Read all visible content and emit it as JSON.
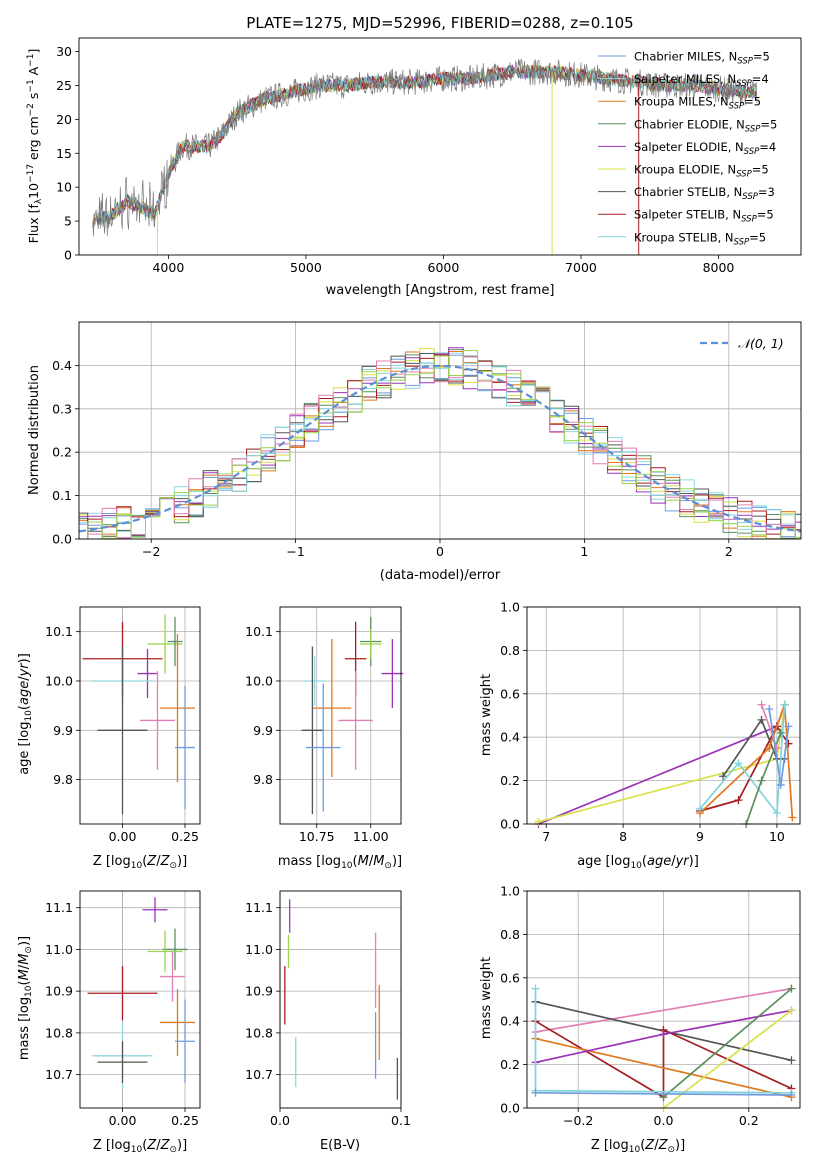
{
  "colors": {
    "chabrier_miles": "#6f9be0",
    "salpeter_miles": "#8fd5e2",
    "kroupa_miles": "#e0781f",
    "chabrier_elodie": "#5d8f60",
    "salpeter_elodie": "#9a33b8",
    "kroupa_elodie": "#d9e04a",
    "chabrier_stelib": "#555555",
    "salpeter_stelib": "#a71c22",
    "kroupa_stelib": "#7fd3dc",
    "pink": "#e47fb5",
    "lime": "#9bd44a",
    "gaussian": "#5a8fd9",
    "grid": "#b0b0b0"
  },
  "chart_data": [
    {
      "id": "spectrum",
      "type": "line",
      "title": "PLATE=1275, MJD=52996, FIBERID=0288, z=0.105",
      "xlabel": "wavelength [Angstrom, rest frame]",
      "ylabel": "Flux [f_λ 10^-17 erg cm^-2 s^-1 A^-1]",
      "xlim": [
        3350,
        8600
      ],
      "ylim": [
        0,
        32
      ],
      "xticks": [
        4000,
        5000,
        6000,
        7000,
        8000
      ],
      "yticks": [
        0,
        5,
        10,
        15,
        20,
        25,
        30
      ],
      "grid": false,
      "legend_position": "top-right",
      "legend": [
        {
          "base": "Chabrier MILES, N",
          "sub": "SSP",
          "tail": "=5"
        },
        {
          "base": "Salpeter MILES, N",
          "sub": "SSP",
          "tail": "=4"
        },
        {
          "base": "Kroupa MILES, N",
          "sub": "SSP",
          "tail": "=5"
        },
        {
          "base": "Chabrier ELODIE, N",
          "sub": "SSP",
          "tail": "=5"
        },
        {
          "base": "Salpeter ELODIE, N",
          "sub": "SSP",
          "tail": "=4"
        },
        {
          "base": "Kroupa ELODIE, N",
          "sub": "SSP",
          "tail": "=5"
        },
        {
          "base": "Chabrier STELIB, N",
          "sub": "SSP",
          "tail": "=3"
        },
        {
          "base": "Salpeter STELIB, N",
          "sub": "SSP",
          "tail": "=5"
        },
        {
          "base": "Kroupa STELIB, N",
          "sub": "SSP",
          "tail": "=5"
        }
      ],
      "data_trend": {
        "x": [
          3450,
          3600,
          3700,
          3800,
          3900,
          4000,
          4100,
          4200,
          4300,
          4400,
          4500,
          4700,
          4900,
          5100,
          5300,
          5500,
          5800,
          6000,
          6200,
          6500,
          6800,
          7000,
          7200,
          7400,
          7600,
          7800,
          8000,
          8200
        ],
        "y": [
          5,
          6,
          8,
          7,
          6,
          12,
          16,
          16,
          16,
          18,
          21,
          23,
          24,
          25,
          25,
          25.5,
          25.5,
          26,
          26,
          27,
          27,
          26.5,
          26,
          25.5,
          25,
          25,
          24.5,
          24
        ]
      }
    },
    {
      "id": "residuals",
      "type": "histogram",
      "xlabel": "(data-model)/error",
      "ylabel": "Normed distribution",
      "xlim": [
        -2.5,
        2.5
      ],
      "ylim": [
        0,
        0.5
      ],
      "xticks": [
        -2,
        -1,
        0,
        1,
        2
      ],
      "yticks": [
        0.0,
        0.1,
        0.2,
        0.3,
        0.4
      ],
      "grid": true,
      "legend_position": "top-right",
      "legend": [
        {
          "label": "𝒩(0, 1)"
        }
      ],
      "gaussian": {
        "mean": 0,
        "sigma": 1
      }
    },
    {
      "id": "age_vs_z",
      "type": "errorbar",
      "xlabel": "Z [log10(Z/Z⊙)]",
      "ylabel": "age [log10(age/yr)]",
      "xlim": [
        -0.17,
        0.31
      ],
      "ylim": [
        9.71,
        10.15
      ],
      "xticks": [
        0.0,
        0.25
      ],
      "yticks": [
        9.8,
        9.9,
        10.0,
        10.1
      ],
      "points": [
        {
          "x": 0.17,
          "y": 10.075,
          "xerr": 0.07,
          "yerr": 0.06,
          "color": "lime"
        },
        {
          "x": 0.21,
          "y": 10.08,
          "xerr": 0.03,
          "yerr": 0.05,
          "color": "chabrier_elodie"
        },
        {
          "x": 0.0,
          "y": 10.045,
          "xerr": 0.16,
          "yerr": 0.075,
          "color": "salpeter_stelib"
        },
        {
          "x": 0.1,
          "y": 10.015,
          "xerr": 0.04,
          "yerr": 0.05,
          "color": "salpeter_elodie"
        },
        {
          "x": 0.0,
          "y": 10.0,
          "xerr": 0.12,
          "yerr": 0.05,
          "color": "salpeter_miles"
        },
        {
          "x": 0.22,
          "y": 9.945,
          "xerr": 0.07,
          "yerr": 0.15,
          "color": "kroupa_miles"
        },
        {
          "x": 0.14,
          "y": 9.92,
          "xerr": 0.07,
          "yerr": 0.1,
          "color": "pink"
        },
        {
          "x": 0.0,
          "y": 9.9,
          "xerr": 0.1,
          "yerr": 0.17,
          "color": "chabrier_stelib"
        },
        {
          "x": 0.25,
          "y": 9.865,
          "xerr": 0.04,
          "yerr": 0.125,
          "color": "chabrier_miles"
        }
      ]
    },
    {
      "id": "age_vs_mass",
      "type": "errorbar",
      "xlabel": "mass [log10(M/M⊙)]",
      "xlim": [
        10.58,
        11.14
      ],
      "ylim": [
        9.71,
        10.15
      ],
      "xticks": [
        10.75,
        11.0
      ],
      "yticks": [
        9.8,
        9.9,
        10.0,
        10.1
      ],
      "points": [
        {
          "x": 11.0,
          "y": 10.08,
          "xerr": 0.05,
          "yerr": 0.05,
          "color": "chabrier_elodie"
        },
        {
          "x": 11.0,
          "y": 10.075,
          "xerr": 0.05,
          "yerr": 0.03,
          "color": "lime"
        },
        {
          "x": 10.93,
          "y": 10.045,
          "xerr": 0.05,
          "yerr": 0.075,
          "color": "salpeter_stelib"
        },
        {
          "x": 11.1,
          "y": 10.015,
          "xerr": 0.05,
          "yerr": 0.07,
          "color": "salpeter_elodie"
        },
        {
          "x": 10.74,
          "y": 10.0,
          "xerr": 0.05,
          "yerr": 0.05,
          "color": "salpeter_miles"
        },
        {
          "x": 10.82,
          "y": 9.945,
          "xerr": 0.09,
          "yerr": 0.14,
          "color": "kroupa_miles"
        },
        {
          "x": 10.93,
          "y": 9.92,
          "xerr": 0.08,
          "yerr": 0.1,
          "color": "pink"
        },
        {
          "x": 10.73,
          "y": 9.9,
          "xerr": 0.05,
          "yerr": 0.17,
          "color": "chabrier_stelib"
        },
        {
          "x": 10.78,
          "y": 9.865,
          "xerr": 0.08,
          "yerr": 0.13,
          "color": "chabrier_miles"
        }
      ]
    },
    {
      "id": "mass_weight_vs_age",
      "type": "line",
      "xlabel": "age [log10(age/yr)]",
      "ylabel": "mass weight",
      "xlim": [
        6.75,
        10.3
      ],
      "ylim": [
        0,
        1.0
      ],
      "xticks": [
        7,
        8,
        9,
        10
      ],
      "yticks": [
        0.0,
        0.2,
        0.4,
        0.6,
        0.8,
        1.0
      ],
      "grid": true,
      "series": [
        {
          "color": "salpeter_elodie",
          "x": [
            6.9,
            10.0,
            10.1
          ],
          "y": [
            0.0,
            0.45,
            0.55
          ]
        },
        {
          "color": "kroupa_elodie",
          "x": [
            6.9,
            10.0,
            10.1
          ],
          "y": [
            0.01,
            0.3,
            0.55
          ]
        },
        {
          "color": "salpeter_stelib",
          "x": [
            9.0,
            9.5,
            10.0,
            10.15
          ],
          "y": [
            0.06,
            0.11,
            0.45,
            0.37
          ]
        },
        {
          "color": "chabrier_stelib",
          "x": [
            9.3,
            9.8,
            10.0,
            10.1
          ],
          "y": [
            0.22,
            0.48,
            0.3,
            0.3
          ]
        },
        {
          "color": "kroupa_miles",
          "x": [
            9.0,
            9.9,
            10.1,
            10.2
          ],
          "y": [
            0.05,
            0.35,
            0.55,
            0.03
          ]
        },
        {
          "color": "kroupa_stelib",
          "x": [
            9.0,
            9.5,
            10.0,
            10.1
          ],
          "y": [
            0.07,
            0.28,
            0.05,
            0.55
          ]
        },
        {
          "color": "chabrier_elodie",
          "x": [
            9.6,
            9.8,
            10.05
          ],
          "y": [
            0.0,
            0.2,
            0.42
          ]
        },
        {
          "color": "pink",
          "x": [
            9.8,
            10.0
          ],
          "y": [
            0.55,
            0.35
          ]
        },
        {
          "color": "chabrier_miles",
          "x": [
            9.9,
            10.05,
            10.15
          ],
          "y": [
            0.53,
            0.18,
            0.45
          ]
        }
      ]
    },
    {
      "id": "mass_vs_z",
      "type": "errorbar",
      "xlabel": "Z [log10(Z/Z⊙)]",
      "ylabel": "mass [log10(M/M⊙)]",
      "xlim": [
        -0.17,
        0.31
      ],
      "ylim": [
        10.62,
        11.14
      ],
      "xticks": [
        0.0,
        0.25
      ],
      "yticks": [
        10.7,
        10.8,
        10.9,
        11.0,
        11.1
      ],
      "points": [
        {
          "x": 0.13,
          "y": 11.095,
          "xerr": 0.05,
          "yerr": 0.03,
          "color": "salpeter_elodie"
        },
        {
          "x": 0.21,
          "y": 11.0,
          "xerr": 0.05,
          "yerr": 0.05,
          "color": "chabrier_elodie"
        },
        {
          "x": 0.17,
          "y": 10.995,
          "xerr": 0.07,
          "yerr": 0.05,
          "color": "lime"
        },
        {
          "x": 0.2,
          "y": 10.935,
          "xerr": 0.05,
          "yerr": 0.06,
          "color": "pink"
        },
        {
          "x": 0.0,
          "y": 10.895,
          "xerr": 0.14,
          "yerr": 0.065,
          "color": "salpeter_stelib"
        },
        {
          "x": 0.22,
          "y": 10.825,
          "xerr": 0.07,
          "yerr": 0.08,
          "color": "kroupa_miles"
        },
        {
          "x": 0.25,
          "y": 10.78,
          "xerr": 0.04,
          "yerr": 0.1,
          "color": "chabrier_miles"
        },
        {
          "x": 0.0,
          "y": 10.745,
          "xerr": 0.12,
          "yerr": 0.08,
          "color": "salpeter_miles"
        },
        {
          "x": 0.0,
          "y": 10.73,
          "xerr": 0.1,
          "yerr": 0.05,
          "color": "chabrier_stelib"
        }
      ]
    },
    {
      "id": "mass_vs_ebv",
      "type": "errorbar",
      "xlabel": "E(B-V)",
      "xlim": [
        0.0,
        0.1
      ],
      "ylim": [
        10.62,
        11.14
      ],
      "xticks": [
        0.0,
        0.1
      ],
      "yticks": [
        10.7,
        10.8,
        10.9,
        11.0,
        11.1
      ],
      "points": [
        {
          "x": 0.008,
          "y": 11.08,
          "xerr": 0.0,
          "yerr": 0.04,
          "color": "salpeter_elodie"
        },
        {
          "x": 0.007,
          "y": 10.995,
          "xerr": 0.0,
          "yerr": 0.04,
          "color": "lime"
        },
        {
          "x": 0.004,
          "y": 10.89,
          "xerr": 0.0,
          "yerr": 0.07,
          "color": "salpeter_stelib"
        },
        {
          "x": 0.079,
          "y": 10.95,
          "xerr": 0.0,
          "yerr": 0.09,
          "color": "pink"
        },
        {
          "x": 0.082,
          "y": 10.825,
          "xerr": 0.0,
          "yerr": 0.09,
          "color": "kroupa_miles"
        },
        {
          "x": 0.079,
          "y": 10.77,
          "xerr": 0.0,
          "yerr": 0.08,
          "color": "chabrier_miles"
        },
        {
          "x": 0.013,
          "y": 10.73,
          "xerr": 0.0,
          "yerr": 0.06,
          "color": "salpeter_miles"
        },
        {
          "x": 0.097,
          "y": 10.69,
          "xerr": 0.0,
          "yerr": 0.05,
          "color": "chabrier_stelib"
        }
      ]
    },
    {
      "id": "mass_weight_vs_z",
      "type": "line",
      "xlabel": "Z [log10(Z/Z⊙)]",
      "ylabel": "mass weight",
      "xlim": [
        -0.32,
        0.32
      ],
      "ylim": [
        0,
        1.0
      ],
      "xticks": [
        -0.2,
        0.0,
        0.2
      ],
      "yticks": [
        0.0,
        0.2,
        0.4,
        0.6,
        0.8,
        1.0
      ],
      "grid": true,
      "series": [
        {
          "color": "pink",
          "x": [
            -0.3,
            0.3
          ],
          "y": [
            0.35,
            0.55
          ]
        },
        {
          "color": "chabrier_stelib",
          "x": [
            -0.3,
            0.3
          ],
          "y": [
            0.49,
            0.22
          ]
        },
        {
          "color": "salpeter_stelib",
          "x": [
            -0.3,
            0.0,
            0.0,
            0.3
          ],
          "y": [
            0.4,
            0.05,
            0.36,
            0.09
          ]
        },
        {
          "color": "kroupa_miles",
          "x": [
            -0.3,
            0.3
          ],
          "y": [
            0.32,
            0.05
          ]
        },
        {
          "color": "salpeter_elodie",
          "x": [
            -0.3,
            0.0,
            0.3
          ],
          "y": [
            0.21,
            0.34,
            0.45
          ]
        },
        {
          "color": "chabrier_elodie",
          "x": [
            0.0,
            0.3
          ],
          "y": [
            0.05,
            0.55
          ]
        },
        {
          "color": "kroupa_elodie",
          "x": [
            0.0,
            0.3
          ],
          "y": [
            0.0,
            0.45
          ]
        },
        {
          "color": "kroupa_stelib",
          "x": [
            -0.3,
            -0.3,
            0.3
          ],
          "y": [
            0.55,
            0.08,
            0.07
          ]
        },
        {
          "color": "chabrier_miles",
          "x": [
            -0.3,
            0.3
          ],
          "y": [
            0.07,
            0.06
          ]
        }
      ]
    }
  ]
}
